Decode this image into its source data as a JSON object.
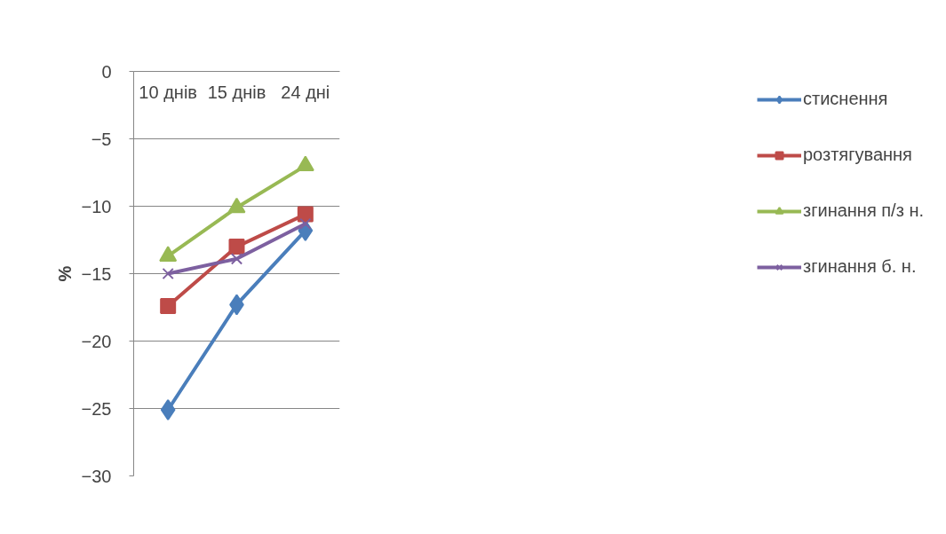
{
  "chart_data": {
    "type": "line",
    "ylabel": "%",
    "categories": [
      "10 днів",
      "15 днів",
      "24 дні"
    ],
    "ylim": [
      -30,
      0
    ],
    "yticks": [
      -30,
      -25,
      -20,
      -15,
      -10,
      -5,
      0
    ],
    "grid": "y",
    "legend": "right",
    "series": [
      {
        "name": "стиснення",
        "color": "#4a7ebb",
        "marker": "diamond",
        "values": [
          -25.1,
          -17.3,
          -11.8
        ]
      },
      {
        "name": "розтягування",
        "color": "#be4b48",
        "marker": "square",
        "values": [
          -17.4,
          -13.0,
          -10.6
        ]
      },
      {
        "name": "згинання п/з н.",
        "color": "#98b954",
        "marker": "triangle",
        "values": [
          -13.7,
          -10.1,
          -7.0
        ]
      },
      {
        "name": "згинання б. н.",
        "color": "#7d60a0",
        "marker": "x",
        "values": [
          -15.0,
          -13.9,
          -11.3
        ]
      }
    ]
  }
}
